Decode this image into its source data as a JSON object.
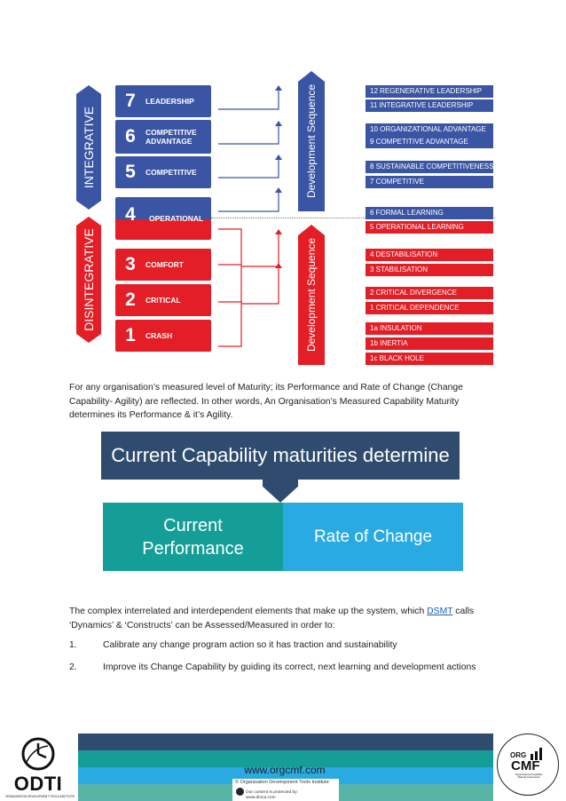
{
  "diagram": {
    "integrative_label": "INTEGRATIVE",
    "disintegrative_label": "DISINTEGRATIVE",
    "sequence_label": "Development Sequence",
    "levels": [
      {
        "num": "7",
        "label": "LEADERSHIP"
      },
      {
        "num": "6",
        "label": "COMPETITIVE ADVANTAGE"
      },
      {
        "num": "5",
        "label": "COMPETITIVE"
      },
      {
        "num": "4",
        "label": "OPERATIONAL"
      },
      {
        "num": "3",
        "label": "COMFORT"
      },
      {
        "num": "2",
        "label": "CRITICAL"
      },
      {
        "num": "1",
        "label": "CRASH"
      }
    ],
    "stages": [
      "12 REGENERATIVE LEADERSHIP",
      "11 INTEGRATIVE LEADERSHIP",
      "10 ORGANIZATIONAL ADVANTAGE",
      "9 COMPETITIVE ADVANTAGE",
      "8 SUSTAINABLE COMPETITIVENESS",
      "7 COMPETITIVE",
      "6 FORMAL LEARNING",
      "5 OPERATIONAL LEARNING",
      "4 DESTABILISATION",
      "3 STABILISATION",
      "2 CRITICAL DIVERGENCE",
      "1 CRITICAL DEPENDENCE",
      "1a INSULATION",
      "1b INERTIA",
      "1c BLACK HOLE"
    ],
    "colors": {
      "integrative": "#3a55a4",
      "disintegrative": "#e31e26"
    }
  },
  "para1": "For any organisation’s measured level of Maturity; its Performance and Rate of Change (Change Capability- Agility) are reflected. In other words, An Organisation’s Measured Capability Maturity determines its Performance & it’s Agility.",
  "capability": {
    "heading": "Current Capability maturities determine",
    "left": "Current Performance",
    "right": "Rate of Change"
  },
  "para2": {
    "before": "The complex interrelated and interdependent elements that make up the system, which ",
    "link": "DSMT",
    "after": " calls ‘Dynamics’ & ‘Constructs’ can be Assessed/Measured in order to:"
  },
  "list": [
    {
      "n": "1.",
      "text": "Calibrate any change program action so it has traction and sustainability"
    },
    {
      "n": "2.",
      "text": "Improve its Change Capability by guiding its correct, next learning and development actions"
    }
  ],
  "footer": {
    "url": "www.orgcmf.com",
    "copyright": "© Organisation Development Tools Institute",
    "protected_line1": "Our content is protected by:",
    "protected_line2": "www.dmca.com",
    "odti_name": "ODTI",
    "odti_sub": "ORGANISATION DEVELOPMENT TOOLS INSTITUTE",
    "cmf_org": "ORG",
    "cmf_name": "CMF",
    "cmf_sub": "Organisational Capability Maturity Framework"
  }
}
